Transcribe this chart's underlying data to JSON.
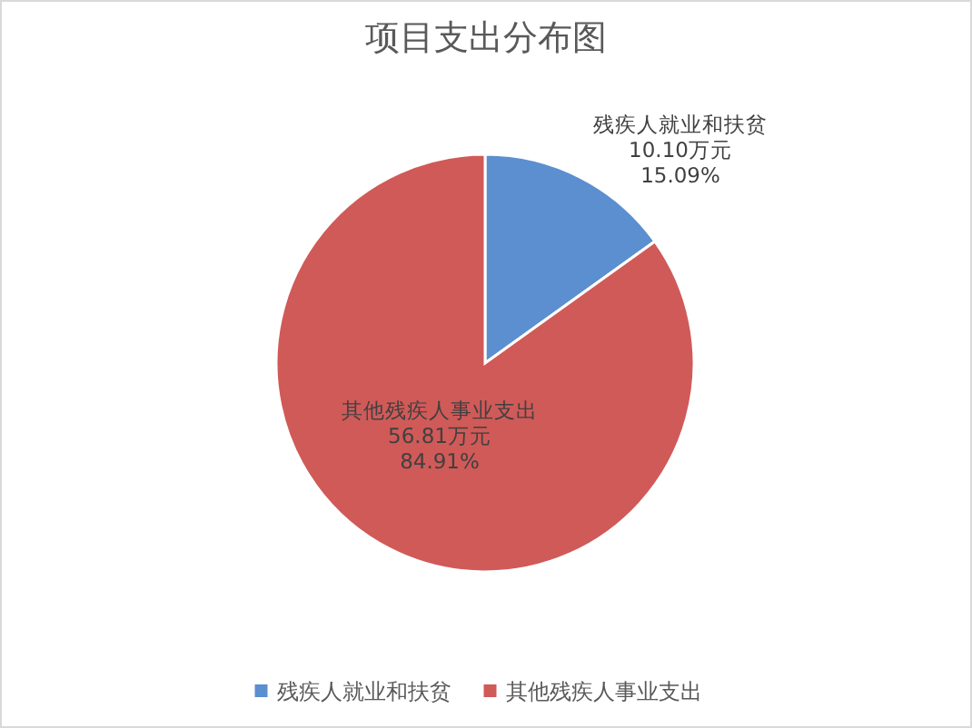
{
  "chart_data": {
    "type": "pie",
    "title": "项目支出分布图",
    "categories": [
      "残疾人就业和扶贫",
      "其他残疾人事业支出"
    ],
    "values": [
      10.1,
      56.81
    ],
    "colors": [
      "#5b8fd0",
      "#d05a58"
    ],
    "value_labels": [
      "10.10万元\n15.09%",
      "56.81万元\n84.91%"
    ],
    "legend": "bottom"
  }
}
